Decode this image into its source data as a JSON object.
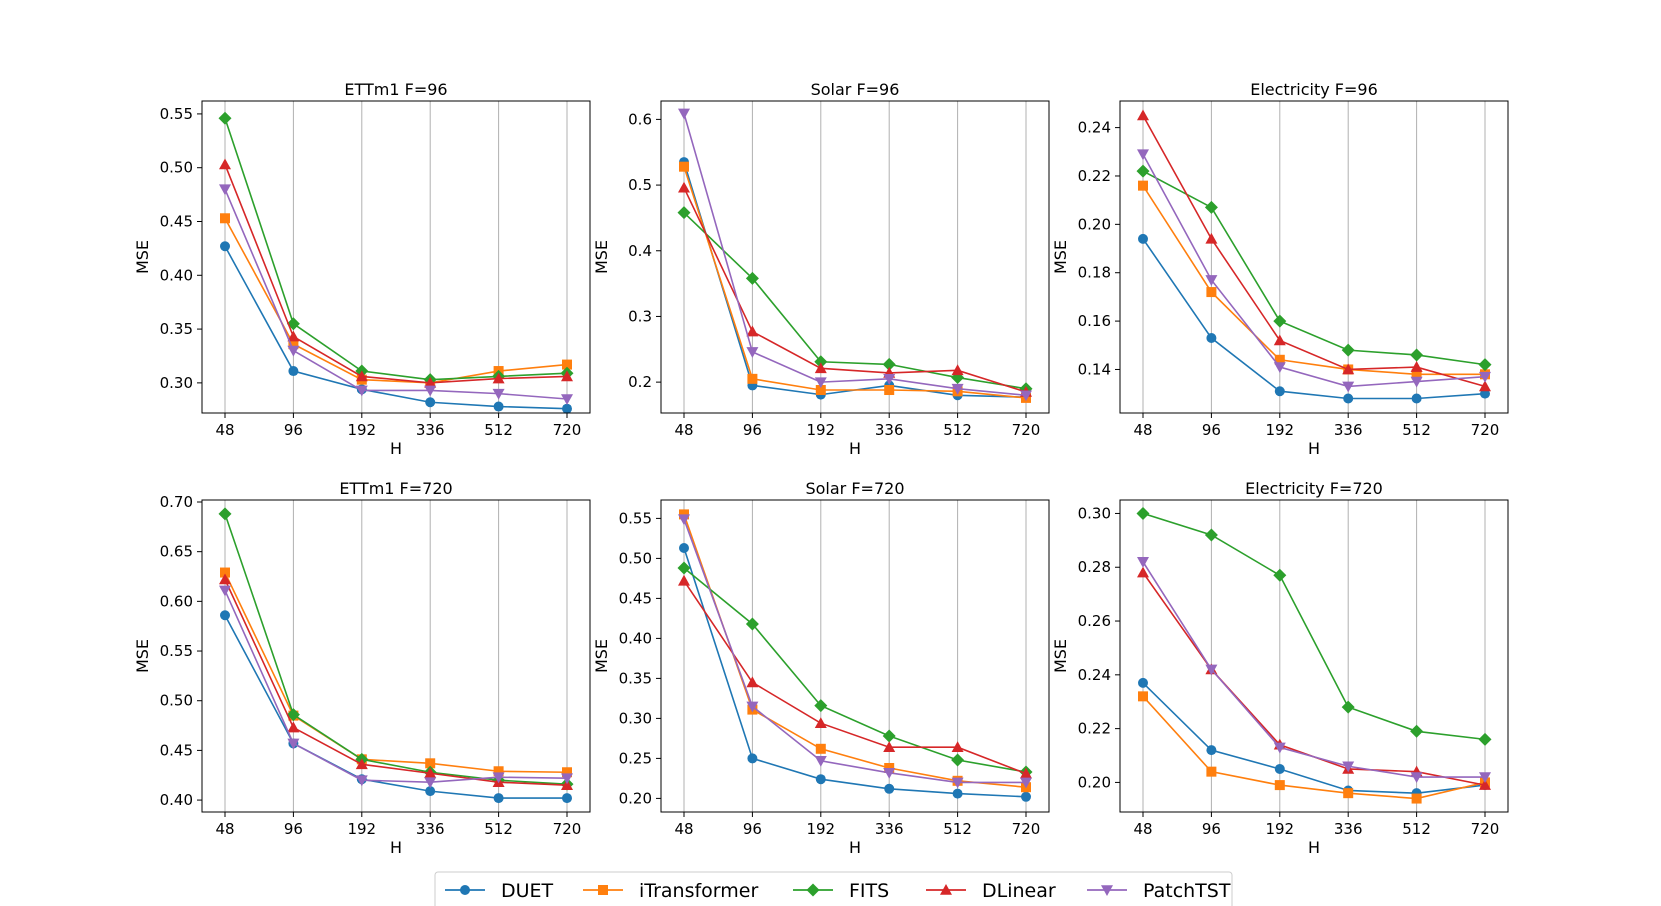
{
  "chart_data": [
    {
      "type": "line",
      "title": "ETTm1 F=96",
      "xlabel": "H",
      "ylabel": "MSE",
      "categories": [
        "48",
        "96",
        "192",
        "336",
        "512",
        "720"
      ],
      "ylim": [
        0.272,
        0.562
      ],
      "yticks": [
        0.3,
        0.35,
        0.4,
        0.45,
        0.5,
        0.55
      ],
      "ytick_labels": [
        "0.30",
        "0.35",
        "0.40",
        "0.45",
        "0.50",
        "0.55"
      ],
      "grid": "x",
      "series": [
        {
          "name": "DUET",
          "values": [
            0.427,
            0.311,
            0.294,
            0.282,
            0.278,
            0.276
          ]
        },
        {
          "name": "iTransformer",
          "values": [
            0.453,
            0.336,
            0.303,
            0.3,
            0.311,
            0.317
          ]
        },
        {
          "name": "FITS",
          "values": [
            0.546,
            0.355,
            0.311,
            0.303,
            0.306,
            0.309
          ]
        },
        {
          "name": "DLinear",
          "values": [
            0.503,
            0.343,
            0.306,
            0.3,
            0.304,
            0.306
          ]
        },
        {
          "name": "PatchTST",
          "values": [
            0.48,
            0.33,
            0.293,
            0.293,
            0.29,
            0.285
          ]
        }
      ]
    },
    {
      "type": "line",
      "title": "Solar F=96",
      "xlabel": "H",
      "ylabel": "MSE",
      "categories": [
        "48",
        "96",
        "192",
        "336",
        "512",
        "720"
      ],
      "ylim": [
        0.153,
        0.628
      ],
      "yticks": [
        0.2,
        0.3,
        0.4,
        0.5,
        0.6
      ],
      "ytick_labels": [
        "0.2",
        "0.3",
        "0.4",
        "0.5",
        "0.6"
      ],
      "grid": "x",
      "series": [
        {
          "name": "DUET",
          "values": [
            0.535,
            0.195,
            0.181,
            0.195,
            0.18,
            0.177
          ]
        },
        {
          "name": "iTransformer",
          "values": [
            0.528,
            0.205,
            0.188,
            0.188,
            0.186,
            0.176
          ]
        },
        {
          "name": "FITS",
          "values": [
            0.458,
            0.358,
            0.231,
            0.227,
            0.207,
            0.19
          ]
        },
        {
          "name": "DLinear",
          "values": [
            0.496,
            0.277,
            0.221,
            0.214,
            0.218,
            0.185
          ]
        },
        {
          "name": "PatchTST",
          "values": [
            0.609,
            0.246,
            0.2,
            0.205,
            0.19,
            0.18
          ]
        }
      ]
    },
    {
      "type": "line",
      "title": "Electricity F=96",
      "xlabel": "H",
      "ylabel": "MSE",
      "categories": [
        "48",
        "96",
        "192",
        "336",
        "512",
        "720"
      ],
      "ylim": [
        0.122,
        0.251
      ],
      "yticks": [
        0.14,
        0.16,
        0.18,
        0.2,
        0.22,
        0.24
      ],
      "ytick_labels": [
        "0.14",
        "0.16",
        "0.18",
        "0.20",
        "0.22",
        "0.24"
      ],
      "grid": "x",
      "series": [
        {
          "name": "DUET",
          "values": [
            0.194,
            0.153,
            0.131,
            0.128,
            0.128,
            0.13
          ]
        },
        {
          "name": "iTransformer",
          "values": [
            0.216,
            0.172,
            0.144,
            0.14,
            0.138,
            0.138
          ]
        },
        {
          "name": "FITS",
          "values": [
            0.222,
            0.207,
            0.16,
            0.148,
            0.146,
            0.142
          ]
        },
        {
          "name": "DLinear",
          "values": [
            0.245,
            0.194,
            0.152,
            0.14,
            0.141,
            0.133
          ]
        },
        {
          "name": "PatchTST",
          "values": [
            0.229,
            0.177,
            0.141,
            0.133,
            0.135,
            0.137
          ]
        }
      ]
    },
    {
      "type": "line",
      "title": "ETTm1 F=720",
      "xlabel": "H",
      "ylabel": "MSE",
      "categories": [
        "48",
        "96",
        "192",
        "336",
        "512",
        "720"
      ],
      "ylim": [
        0.388,
        0.702
      ],
      "yticks": [
        0.4,
        0.45,
        0.5,
        0.55,
        0.6,
        0.65,
        0.7
      ],
      "ytick_labels": [
        "0.40",
        "0.45",
        "0.50",
        "0.55",
        "0.60",
        "0.65",
        "0.70"
      ],
      "grid": "x",
      "series": [
        {
          "name": "DUET",
          "values": [
            0.586,
            0.457,
            0.421,
            0.409,
            0.402,
            0.402
          ]
        },
        {
          "name": "iTransformer",
          "values": [
            0.629,
            0.485,
            0.441,
            0.437,
            0.429,
            0.428
          ]
        },
        {
          "name": "FITS",
          "values": [
            0.688,
            0.486,
            0.441,
            0.428,
            0.42,
            0.416
          ]
        },
        {
          "name": "DLinear",
          "values": [
            0.622,
            0.473,
            0.436,
            0.427,
            0.418,
            0.415
          ]
        },
        {
          "name": "PatchTST",
          "values": [
            0.611,
            0.457,
            0.42,
            0.418,
            0.423,
            0.422
          ]
        }
      ]
    },
    {
      "type": "line",
      "title": "Solar F=720",
      "xlabel": "H",
      "ylabel": "MSE",
      "categories": [
        "48",
        "96",
        "192",
        "336",
        "512",
        "720"
      ],
      "ylim": [
        0.183,
        0.573
      ],
      "yticks": [
        0.2,
        0.25,
        0.3,
        0.35,
        0.4,
        0.45,
        0.5,
        0.55
      ],
      "ytick_labels": [
        "0.20",
        "0.25",
        "0.30",
        "0.35",
        "0.40",
        "0.45",
        "0.50",
        "0.55"
      ],
      "grid": "x",
      "series": [
        {
          "name": "DUET",
          "values": [
            0.513,
            0.25,
            0.224,
            0.212,
            0.206,
            0.202
          ]
        },
        {
          "name": "iTransformer",
          "values": [
            0.555,
            0.311,
            0.262,
            0.238,
            0.222,
            0.214
          ]
        },
        {
          "name": "FITS",
          "values": [
            0.488,
            0.418,
            0.316,
            0.278,
            0.248,
            0.233
          ]
        },
        {
          "name": "DLinear",
          "values": [
            0.472,
            0.345,
            0.294,
            0.264,
            0.264,
            0.231
          ]
        },
        {
          "name": "PatchTST",
          "values": [
            0.549,
            0.315,
            0.247,
            0.232,
            0.22,
            0.22
          ]
        }
      ]
    },
    {
      "type": "line",
      "title": "Electricity F=720",
      "xlabel": "H",
      "ylabel": "MSE",
      "categories": [
        "48",
        "96",
        "192",
        "336",
        "512",
        "720"
      ],
      "ylim": [
        0.189,
        0.305
      ],
      "yticks": [
        0.2,
        0.22,
        0.24,
        0.26,
        0.28,
        0.3
      ],
      "ytick_labels": [
        "0.20",
        "0.22",
        "0.24",
        "0.26",
        "0.28",
        "0.30"
      ],
      "grid": "x",
      "series": [
        {
          "name": "DUET",
          "values": [
            0.237,
            0.212,
            0.205,
            0.197,
            0.196,
            0.199
          ]
        },
        {
          "name": "iTransformer",
          "values": [
            0.232,
            0.204,
            0.199,
            0.196,
            0.194,
            0.2
          ]
        },
        {
          "name": "FITS",
          "values": [
            0.3,
            0.292,
            0.277,
            0.228,
            0.219,
            0.216
          ]
        },
        {
          "name": "DLinear",
          "values": [
            0.278,
            0.242,
            0.214,
            0.205,
            0.204,
            0.199
          ]
        },
        {
          "name": "PatchTST",
          "values": [
            0.282,
            0.242,
            0.213,
            0.206,
            0.202,
            0.202
          ]
        }
      ]
    }
  ],
  "legend": {
    "placement": "bottom-center",
    "entries": [
      {
        "name": "DUET",
        "color": "#1f77b4",
        "marker": "circle"
      },
      {
        "name": "iTransformer",
        "color": "#ff7f0e",
        "marker": "square"
      },
      {
        "name": "FITS",
        "color": "#2ca02c",
        "marker": "diamond"
      },
      {
        "name": "DLinear",
        "color": "#d62728",
        "marker": "triangle-up"
      },
      {
        "name": "PatchTST",
        "color": "#9467bd",
        "marker": "triangle-down"
      }
    ]
  }
}
